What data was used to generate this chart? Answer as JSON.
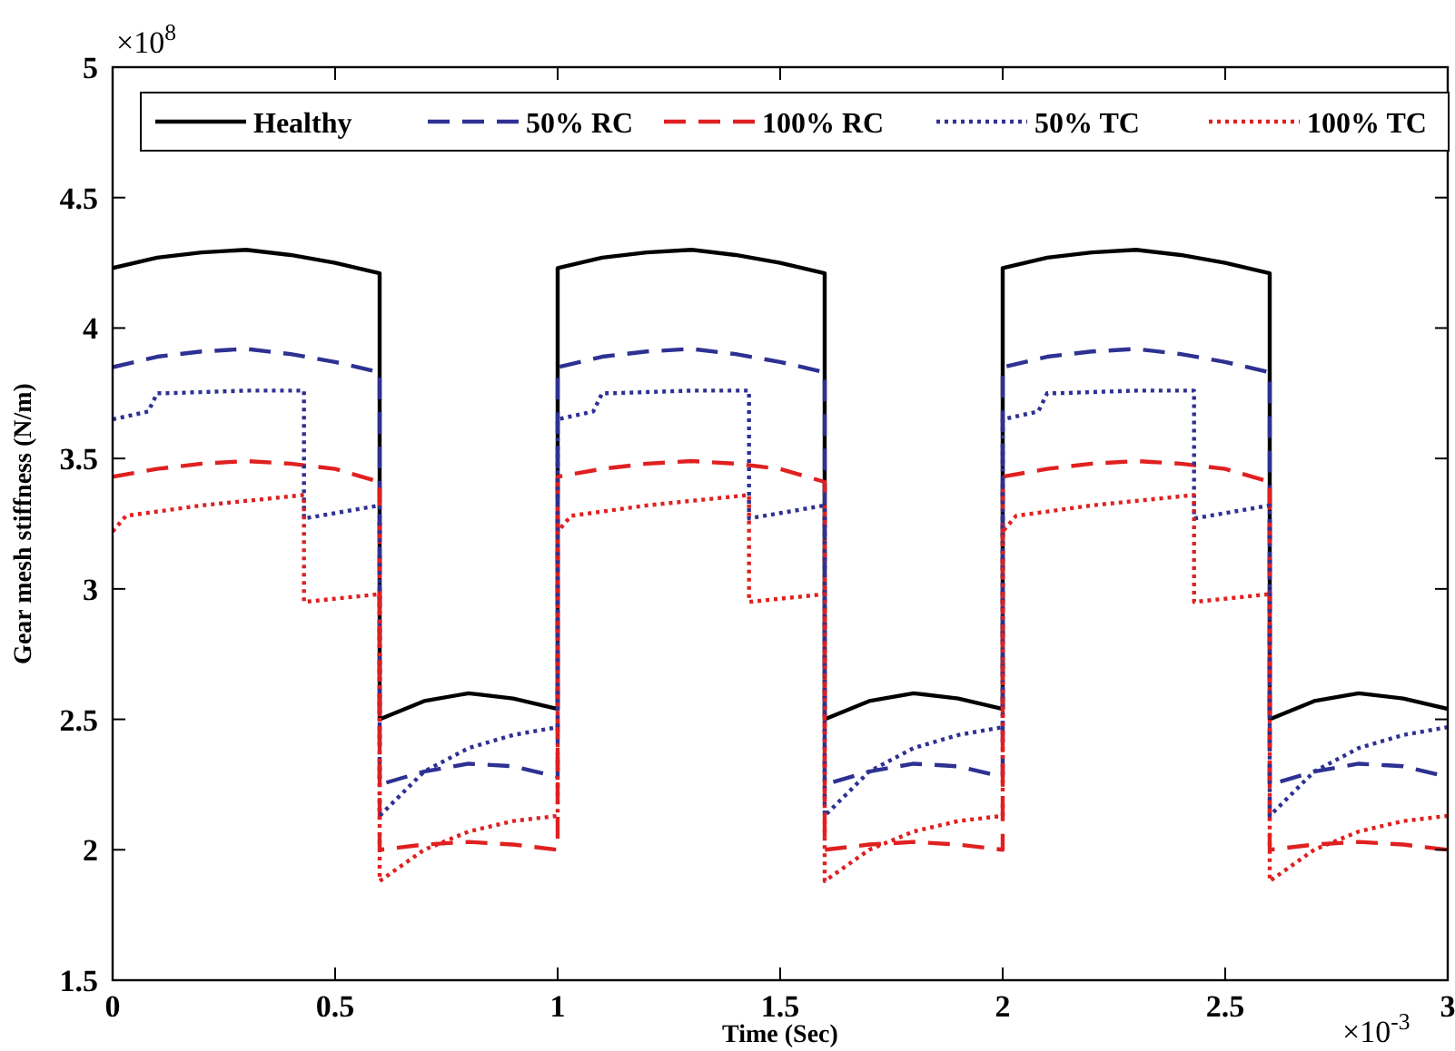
{
  "chart_data": {
    "type": "line",
    "xlabel": "Time (Sec)",
    "ylabel": "Gear mesh stiffness (N/m)",
    "annotations": [
      "×10$^{8}$",
      "×10$^{-3}$"
    ],
    "xlim": [
      0,
      3
    ],
    "ylim": [
      1.5,
      5
    ],
    "xticks": [
      0,
      0.5,
      1,
      1.5,
      2,
      2.5,
      3
    ],
    "yticks": [
      1.5,
      2,
      2.5,
      3,
      3.5,
      4,
      4.5,
      5
    ],
    "grid": false,
    "legend": "top",
    "marker": "none",
    "series": [
      {
        "name": "Healthy",
        "color": "#000000",
        "line_style": "solid",
        "x": [
          0,
          0.1,
          0.2,
          0.3,
          0.4,
          0.5,
          0.6,
          0.6,
          0.7,
          0.8,
          0.9,
          1,
          1,
          1.1,
          1.2,
          1.3,
          1.4,
          1.5,
          1.6,
          1.6,
          1.7,
          1.8,
          1.9,
          2,
          2,
          2.1,
          2.2,
          2.3,
          2.4,
          2.5,
          2.6,
          2.6,
          2.7,
          2.8,
          2.9,
          3
        ],
        "values": [
          4.23,
          4.27,
          4.29,
          4.3,
          4.28,
          4.25,
          4.21,
          2.5,
          2.57,
          2.6,
          2.58,
          2.54,
          4.23,
          4.27,
          4.29,
          4.3,
          4.28,
          4.25,
          4.21,
          2.5,
          2.57,
          2.6,
          2.58,
          2.54,
          4.23,
          4.27,
          4.29,
          4.3,
          4.28,
          4.25,
          4.21,
          2.5,
          2.57,
          2.6,
          2.58,
          2.54
        ]
      },
      {
        "name": "50% RC",
        "color": "#2e3192",
        "line_style": "dashed",
        "x": [
          0,
          0.1,
          0.2,
          0.3,
          0.4,
          0.5,
          0.6,
          0.6,
          0.7,
          0.8,
          0.9,
          1,
          1,
          1.1,
          1.2,
          1.3,
          1.4,
          1.5,
          1.6,
          1.6,
          1.7,
          1.8,
          1.9,
          2,
          2,
          2.1,
          2.2,
          2.3,
          2.4,
          2.5,
          2.6,
          2.6,
          2.7,
          2.8,
          2.9,
          3
        ],
        "values": [
          3.85,
          3.89,
          3.91,
          3.92,
          3.9,
          3.87,
          3.83,
          2.25,
          2.3,
          2.33,
          2.32,
          2.28,
          3.85,
          3.89,
          3.91,
          3.92,
          3.9,
          3.87,
          3.83,
          2.25,
          2.3,
          2.33,
          2.32,
          2.28,
          3.85,
          3.89,
          3.91,
          3.92,
          3.9,
          3.87,
          3.83,
          2.25,
          2.3,
          2.33,
          2.32,
          2.28
        ]
      },
      {
        "name": "100% RC",
        "color": "#e02020",
        "line_style": "dashed",
        "x": [
          0,
          0.1,
          0.2,
          0.3,
          0.4,
          0.5,
          0.6,
          0.6,
          0.7,
          0.8,
          0.9,
          1,
          1,
          1.1,
          1.2,
          1.3,
          1.4,
          1.5,
          1.6,
          1.6,
          1.7,
          1.8,
          1.9,
          2,
          2,
          2.1,
          2.2,
          2.3,
          2.4,
          2.5,
          2.6,
          2.6,
          2.7,
          2.8,
          2.9,
          3
        ],
        "values": [
          3.43,
          3.46,
          3.48,
          3.49,
          3.48,
          3.46,
          3.41,
          2.0,
          2.02,
          2.03,
          2.02,
          2.0,
          3.43,
          3.46,
          3.48,
          3.49,
          3.48,
          3.46,
          3.41,
          2.0,
          2.02,
          2.03,
          2.02,
          2.0,
          3.43,
          3.46,
          3.48,
          3.49,
          3.48,
          3.46,
          3.41,
          2.0,
          2.02,
          2.03,
          2.02,
          2.0
        ]
      },
      {
        "name": "50% TC",
        "color": "#2e3192",
        "line_style": "dotted",
        "x": [
          0,
          0.08,
          0.1,
          0.12,
          0.3,
          0.43,
          0.43,
          0.6,
          0.6,
          0.7,
          0.8,
          0.9,
          1,
          1,
          1.08,
          1.1,
          1.12,
          1.3,
          1.43,
          1.43,
          1.6,
          1.6,
          1.7,
          1.8,
          1.9,
          2,
          2,
          2.08,
          2.1,
          2.12,
          2.3,
          2.43,
          2.43,
          2.6,
          2.6,
          2.7,
          2.8,
          2.9,
          3
        ],
        "values": [
          3.65,
          3.68,
          3.75,
          3.75,
          3.76,
          3.76,
          3.27,
          3.32,
          2.13,
          2.3,
          2.39,
          2.44,
          2.47,
          3.65,
          3.68,
          3.75,
          3.75,
          3.76,
          3.76,
          3.27,
          3.32,
          2.13,
          2.3,
          2.39,
          2.44,
          2.47,
          3.65,
          3.68,
          3.75,
          3.75,
          3.76,
          3.76,
          3.27,
          3.32,
          2.13,
          2.3,
          2.39,
          2.44,
          2.47
        ]
      },
      {
        "name": "100% TC",
        "color": "#e02020",
        "line_style": "dotted",
        "x": [
          0,
          0.03,
          0.2,
          0.43,
          0.43,
          0.6,
          0.6,
          0.7,
          0.8,
          0.9,
          1,
          1,
          1.03,
          1.2,
          1.43,
          1.43,
          1.6,
          1.6,
          1.7,
          1.8,
          1.9,
          2,
          2,
          2.03,
          2.2,
          2.43,
          2.43,
          2.6,
          2.6,
          2.7,
          2.8,
          2.9,
          3
        ],
        "values": [
          3.22,
          3.28,
          3.32,
          3.36,
          2.95,
          2.98,
          1.88,
          2.0,
          2.07,
          2.11,
          2.13,
          3.22,
          3.28,
          3.32,
          3.36,
          2.95,
          2.98,
          1.88,
          2.0,
          2.07,
          2.11,
          2.13,
          3.22,
          3.28,
          3.32,
          3.36,
          2.95,
          2.98,
          1.88,
          2.0,
          2.07,
          2.11,
          2.13
        ]
      }
    ]
  }
}
